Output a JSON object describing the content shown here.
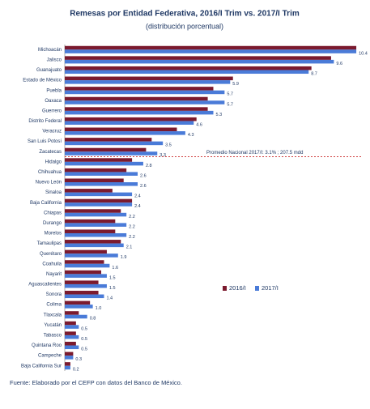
{
  "chart_data": {
    "type": "hbar",
    "title": "Remesas por Entidad Federativa, 2016/I Trim vs. 2017/I Trim",
    "subtitle": "(distribución porcentual)",
    "categories": [
      "Michoacán",
      "Jalisco",
      "Guanajuato",
      "Estado de México",
      "Puebla",
      "Oaxaca",
      "Guerrero",
      "Distrito Federal",
      "Veracruz",
      "San Luis Potosí",
      "Zacatecas",
      "Hidalgo",
      "Chihuahua",
      "Nuevo León",
      "Sinaloa",
      "Baja California",
      "Chiapas",
      "Durango",
      "Morelos",
      "Tamaulipas",
      "Querétaro",
      "Coahuila",
      "Nayarit",
      "Aguascalientes",
      "Sonora",
      "Colima",
      "Tlaxcala",
      "Yucatán",
      "Tabasco",
      "Quintana Roo",
      "Campeche",
      "Baja California Sur"
    ],
    "series": [
      {
        "name": "2016/I",
        "color": "#7b1a2e",
        "values": [
          10.4,
          9.5,
          8.8,
          6.0,
          5.3,
          5.1,
          5.1,
          4.7,
          4.0,
          3.1,
          2.9,
          2.4,
          2.2,
          2.1,
          1.7,
          2.4,
          2.0,
          1.8,
          1.8,
          2.0,
          1.5,
          1.4,
          1.3,
          1.2,
          1.2,
          0.9,
          0.5,
          0.4,
          0.4,
          0.4,
          0.3,
          0.2
        ]
      },
      {
        "name": "2017/I",
        "color": "#4a7bd8",
        "values": [
          10.4,
          9.6,
          8.7,
          5.9,
          5.7,
          5.7,
          5.3,
          4.6,
          4.3,
          3.5,
          3.3,
          2.8,
          2.6,
          2.6,
          2.4,
          2.4,
          2.2,
          2.2,
          2.2,
          2.1,
          1.9,
          1.6,
          1.5,
          1.5,
          1.4,
          1.0,
          0.8,
          0.5,
          0.5,
          0.5,
          0.3,
          0.2
        ],
        "value_labels": [
          "10.4",
          "9.6",
          "8.7",
          "5.9",
          "5.7",
          "5.7",
          "5.3",
          "4.6",
          "4.3",
          "3.5",
          "3.3",
          "2.8",
          "2.6",
          "2.6",
          "2.4",
          "2.4",
          "2.2",
          "2.2",
          "2.2",
          "2.1",
          "1.9",
          "1.6",
          "1.5",
          "1.5",
          "1.4",
          "1.0",
          "0.8",
          "0.5",
          "0.5",
          "0.5",
          "0.3",
          "0.2"
        ]
      }
    ],
    "xlim": [
      0,
      10.6
    ],
    "annotation": "Promedio Nacional 2017/I: 3.1% ; 207.5 mdd",
    "legend": "right",
    "source": "Fuente: Elaborado por el  CEFP con datos del Banco de México."
  }
}
